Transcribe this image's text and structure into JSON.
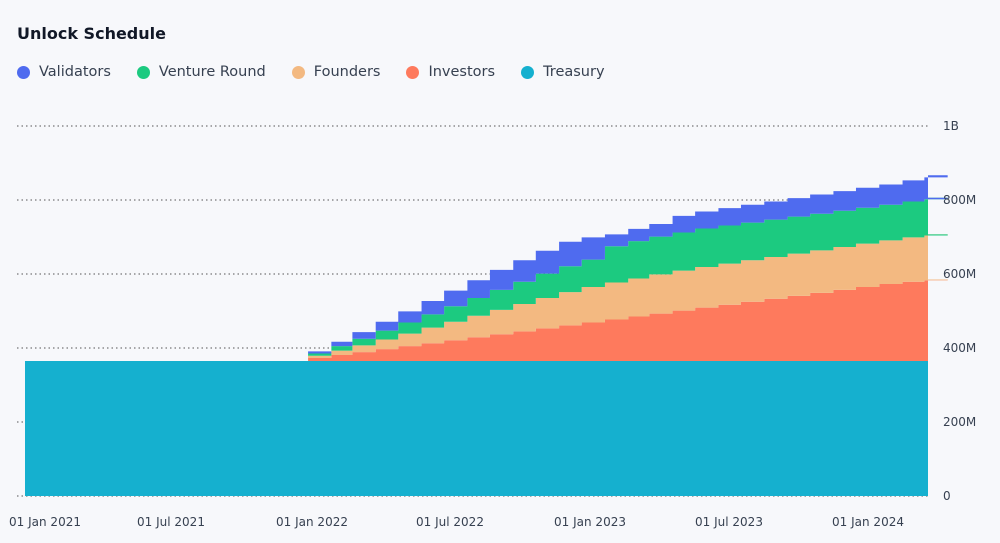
{
  "chart_data": {
    "type": "area",
    "title": "Unlock Schedule",
    "stacked": true,
    "step": true,
    "x_ticks": [
      "01 Jan 2021",
      "01 Jul 2021",
      "01 Jan 2022",
      "01 Jul 2022",
      "01 Jan 2023",
      "01 Jul 2023",
      "01 Jan 2024"
    ],
    "y_ticks": [
      "0",
      "200M",
      "400M",
      "600M",
      "800M",
      "1B"
    ],
    "ylim": [
      0,
      1000000000
    ],
    "grid": true,
    "legend_position": "top-left",
    "x": [
      "2020-12-31",
      "2021-12-17",
      "2022-01-17",
      "2022-02-14",
      "2022-03-17",
      "2022-04-16",
      "2022-05-17",
      "2022-06-16",
      "2022-07-17",
      "2022-08-16",
      "2022-09-16",
      "2022-10-16",
      "2022-11-16",
      "2022-12-16",
      "2023-01-16",
      "2023-02-16",
      "2023-03-16",
      "2023-04-16",
      "2023-05-16",
      "2023-06-16",
      "2023-07-16",
      "2023-08-16",
      "2023-09-16",
      "2023-10-16",
      "2023-11-16",
      "2023-12-16",
      "2024-01-16",
      "2024-02-16",
      "2024-03-16",
      "2024-04-16"
    ],
    "series": [
      {
        "name": "Treasury",
        "color": "#15b0cf",
        "values": [
          365000000,
          365000000,
          365000000,
          365000000,
          365000000,
          365000000,
          365000000,
          365000000,
          365000000,
          365000000,
          365000000,
          365000000,
          365000000,
          365000000,
          365000000,
          365000000,
          365000000,
          365000000,
          365000000,
          365000000,
          365000000,
          365000000,
          365000000,
          365000000,
          365000000,
          365000000,
          365000000,
          365000000,
          365000000,
          365000000
        ]
      },
      {
        "name": "Investors",
        "color": "#fe7a5d",
        "values": [
          0,
          8000000,
          16000000,
          24000000,
          32000000,
          40000000,
          48000000,
          56000000,
          64000000,
          72000000,
          80000000,
          88000000,
          96000000,
          104000000,
          112000000,
          120000000,
          128000000,
          136000000,
          144000000,
          152000000,
          160000000,
          168000000,
          176000000,
          184000000,
          192000000,
          200000000,
          208000000,
          214000000,
          218000000,
          220000000
        ]
      },
      {
        "name": "Founders",
        "color": "#f3b981",
        "values": [
          0,
          6000000,
          12000000,
          18000000,
          26000000,
          34000000,
          42000000,
          50000000,
          58000000,
          66000000,
          74000000,
          82000000,
          90000000,
          96000000,
          100000000,
          103000000,
          106000000,
          108000000,
          110000000,
          111000000,
          112000000,
          113000000,
          114000000,
          115000000,
          116000000,
          117000000,
          118000000,
          120000000,
          121000000,
          122000000
        ]
      },
      {
        "name": "Venture Round",
        "color": "#1cca80",
        "values": [
          0,
          6000000,
          12000000,
          18000000,
          24000000,
          30000000,
          36000000,
          42000000,
          48000000,
          54000000,
          60000000,
          66000000,
          70000000,
          74000000,
          98000000,
          101000000,
          102000000,
          103000000,
          104000000,
          103000000,
          102000000,
          101000000,
          100000000,
          99000000,
          98000000,
          97000000,
          96000000,
          97000000,
          98000000,
          99000000
        ]
      },
      {
        "name": "Validators",
        "color": "#4f6bef",
        "values": [
          0,
          6000000,
          12000000,
          18000000,
          24000000,
          30000000,
          36000000,
          42000000,
          48000000,
          54000000,
          58000000,
          62000000,
          66000000,
          60000000,
          32000000,
          33000000,
          34000000,
          45000000,
          46000000,
          47000000,
          48000000,
          49000000,
          50000000,
          52000000,
          53000000,
          54000000,
          55000000,
          57000000,
          59000000,
          61000000
        ]
      }
    ],
    "legend_order": [
      "Validators",
      "Venture Round",
      "Founders",
      "Investors",
      "Treasury"
    ]
  }
}
